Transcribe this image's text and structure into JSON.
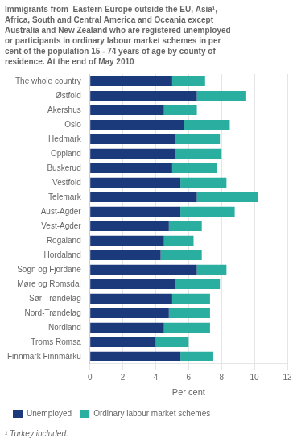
{
  "chart_data": {
    "type": "bar",
    "orientation": "horizontal",
    "stacked": true,
    "title": [
      "Immigrants from  Eastern Europe outside the EU, Asia¹,",
      "Africa, South and Central America and Oceania except",
      "Australia and New Zealand who are registered unemployed",
      "or participants in ordinary labour market schemes in per",
      "cent of the population 15 - 74 years of age by county of",
      "residence. At the end of May 2010"
    ],
    "footnote": "¹ Turkey included.",
    "xlabel": "Per cent",
    "categories": [
      "The whole country",
      "Østfold",
      "Akershus",
      "Oslo",
      "Hedmark",
      "Oppland",
      "Buskerud",
      "Vestfold",
      "Telemark",
      "Aust-Agder",
      "Vest-Agder",
      "Rogaland",
      "Hordaland",
      "Sogn og Fjordane",
      "Møre og Romsdal",
      "Sør-Trøndelag",
      "Nord-Trøndelag",
      "Nordland",
      "Troms Romsa",
      "Finnmark Finnmárku"
    ],
    "series": [
      {
        "name": "Unemployed",
        "color": "#1a3a7c",
        "values": [
          5.0,
          6.5,
          4.5,
          5.7,
          5.2,
          5.2,
          5.0,
          5.5,
          6.5,
          5.5,
          4.8,
          4.5,
          4.3,
          6.5,
          5.2,
          5.0,
          4.8,
          4.5,
          4.0,
          5.5
        ]
      },
      {
        "name": "Ordinary labour market schemes",
        "color": "#2aaea0",
        "values": [
          2.0,
          3.0,
          2.0,
          2.8,
          2.7,
          2.8,
          2.7,
          2.8,
          3.7,
          3.3,
          2.0,
          1.8,
          2.5,
          1.8,
          2.7,
          2.3,
          2.5,
          2.8,
          2.0,
          2.0
        ]
      }
    ],
    "xlim": [
      0,
      12
    ],
    "xticks": [
      0,
      2,
      4,
      6,
      8,
      10,
      12
    ],
    "grid": true,
    "legend": "bottom"
  }
}
